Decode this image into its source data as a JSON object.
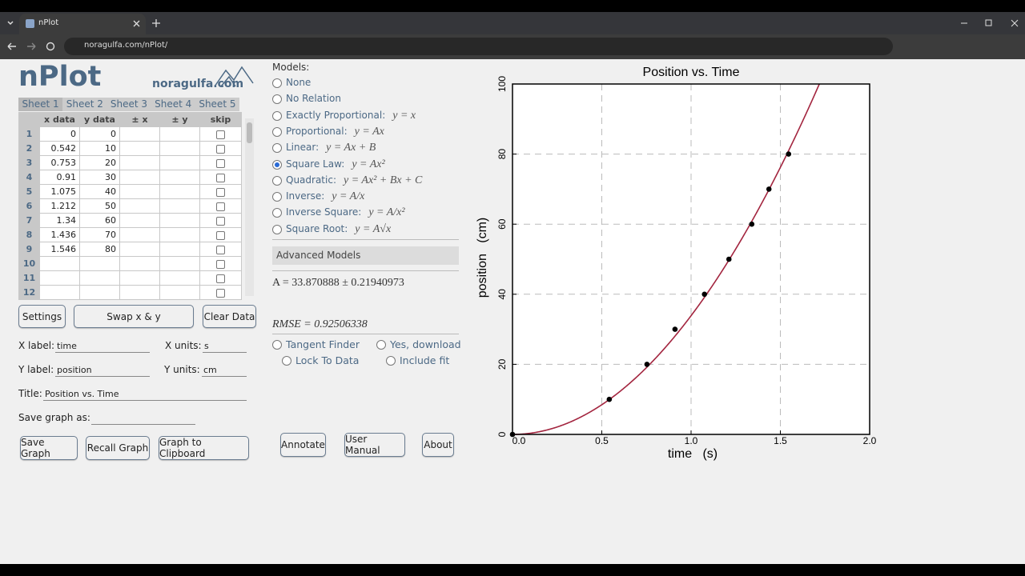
{
  "browser": {
    "tab_title": "nPlot",
    "url": "noragulfa.com/nPlot/"
  },
  "header": {
    "logo": "nPlot",
    "site": "noragulfa.com"
  },
  "sheets": [
    "Sheet 1",
    "Sheet 2",
    "Sheet 3",
    "Sheet 4",
    "Sheet 5"
  ],
  "table": {
    "columns": [
      "x data",
      "y data",
      "± x",
      "± y",
      "skip"
    ],
    "rows": [
      {
        "n": 1,
        "x": 0,
        "y": 0
      },
      {
        "n": 2,
        "x": 0.542,
        "y": 10
      },
      {
        "n": 3,
        "x": 0.753,
        "y": 20
      },
      {
        "n": 4,
        "x": 0.91,
        "y": 30
      },
      {
        "n": 5,
        "x": 1.075,
        "y": 40
      },
      {
        "n": 6,
        "x": 1.212,
        "y": 50
      },
      {
        "n": 7,
        "x": 1.34,
        "y": 60
      },
      {
        "n": 8,
        "x": 1.436,
        "y": 70
      },
      {
        "n": 9,
        "x": 1.546,
        "y": 80
      },
      {
        "n": 10
      },
      {
        "n": 11
      },
      {
        "n": 12
      }
    ]
  },
  "buttons": {
    "settings": "Settings",
    "swap": "Swap x & y",
    "clear": "Clear Data",
    "save": "Save Graph",
    "recall": "Recall Graph",
    "clipboard": "Graph to Clipboard",
    "annotate": "Annotate",
    "manual": "User Manual",
    "about": "About"
  },
  "fields": [
    {
      "label": "X label:",
      "value": "time"
    },
    {
      "label": "X units:",
      "value": "s"
    },
    {
      "label": "Y label:",
      "value": "position"
    },
    {
      "label": "Y units:",
      "value": "cm"
    },
    {
      "label": "Title:",
      "value": "Position vs. Time"
    },
    {
      "label": "Save graph as:"
    }
  ],
  "models": {
    "heading": "Models:",
    "items": [
      {
        "name": "None"
      },
      {
        "name": "No Relation"
      },
      {
        "name": "Exactly Proportional:",
        "formula": "y = x"
      },
      {
        "name": "Proportional:",
        "formula": "y = Ax"
      },
      {
        "name": "Linear:",
        "formula": "y = Ax + B"
      },
      {
        "name": "Square Law:",
        "formula": "y = Ax²",
        "checked": true
      },
      {
        "name": "Quadratic:",
        "formula": "y = Ax² + Bx + C"
      },
      {
        "name": "Inverse:",
        "formula": "y = A/x"
      },
      {
        "name": "Inverse Square:",
        "formula": "y = A/x²"
      },
      {
        "name": "Square Root:",
        "formula": "y = A√x"
      }
    ],
    "advanced": "Advanced Models"
  },
  "fit": {
    "parameter": "A = 33.870888 ± 0.21940973",
    "rmse": "RMSE = 0.92506338"
  },
  "options": [
    "Tangent Finder",
    "Yes, download",
    "Lock To Data",
    "Include fit"
  ],
  "graph": {
    "type": "scatter",
    "title": "Position vs. Time",
    "x_label": "time   (s)",
    "y_label": "position   (cm)",
    "x": [
      0,
      0.542,
      0.753,
      0.91,
      1.075,
      1.212,
      1.34,
      1.436,
      1.546
    ],
    "y": [
      0,
      10,
      20,
      30,
      40,
      50,
      60,
      70,
      80
    ],
    "fit_A": 33.870888,
    "point_color": "#000000",
    "fit_color": "#a3253f",
    "xlim": [
      0,
      2
    ],
    "ylim": [
      0,
      100
    ],
    "xticks": [
      {
        "value": 0,
        "label": "0.0"
      },
      0.5,
      {
        "value": 1,
        "label": "1.0"
      },
      1.5,
      {
        "value": 2,
        "label": "2.0"
      }
    ],
    "yticks": [
      0,
      20,
      40,
      60,
      80,
      100
    ],
    "grid": true
  }
}
